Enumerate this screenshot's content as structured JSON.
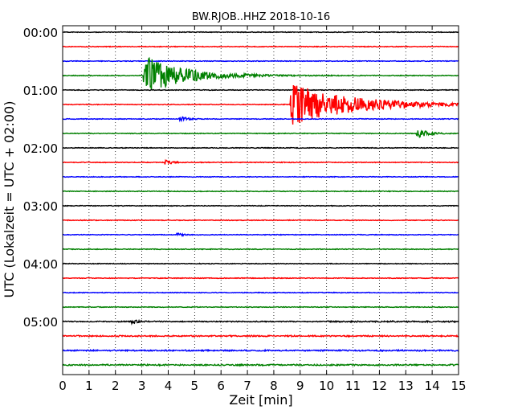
{
  "chart_data": {
    "type": "line",
    "title": "BW.RJOB..HHZ 2018-10-16",
    "xlabel": "Zeit  [min]",
    "ylabel": "UTC (Lokalzeit = UTC + 02:00)",
    "xlim": [
      0,
      15
    ],
    "x_ticks": [
      "0",
      "1",
      "2",
      "3",
      "4",
      "5",
      "6",
      "7",
      "8",
      "9",
      "10",
      "11",
      "12",
      "13",
      "14",
      "15"
    ],
    "y_ticks": [
      "00:00",
      "01:00",
      "02:00",
      "03:00",
      "04:00",
      "05:00"
    ],
    "trace_interval_min": 15,
    "trace_colors": [
      "#000000",
      "#ff0000",
      "#0000ff",
      "#008000"
    ],
    "grid": "vertical-dotted",
    "events": [
      {
        "trace": 3,
        "minute": 3.05,
        "peak": 3.2,
        "decay_min": 1.4
      },
      {
        "trace": 5,
        "minute": 8.6,
        "peak": 3.4,
        "decay_min": 2.2
      },
      {
        "trace": 6,
        "minute": 4.4,
        "peak": 0.5,
        "decay_min": 0.25
      },
      {
        "trace": 7,
        "minute": 13.4,
        "peak": 0.8,
        "decay_min": 0.35
      },
      {
        "trace": 9,
        "minute": 3.85,
        "peak": 0.45,
        "decay_min": 0.25
      },
      {
        "trace": 14,
        "minute": 4.3,
        "peak": 0.35,
        "decay_min": 0.2
      },
      {
        "trace": 20,
        "minute": 2.55,
        "peak": 0.4,
        "decay_min": 0.25
      }
    ]
  }
}
